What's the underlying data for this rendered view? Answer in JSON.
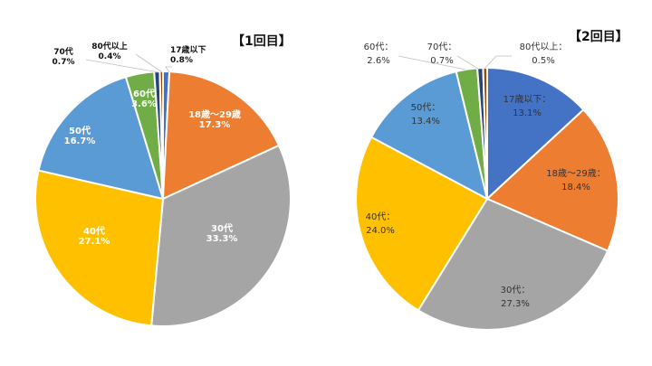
{
  "chart_data": [
    {
      "type": "pie",
      "title": "【1回目】",
      "categories": [
        "17歳以下",
        "18歳～29歳",
        "30代",
        "40代",
        "50代",
        "60代",
        "70代",
        "80代以上"
      ],
      "values": [
        0.8,
        17.3,
        33.3,
        27.1,
        16.7,
        3.6,
        0.7,
        0.4
      ],
      "labels": [
        "0.8%",
        "17.3%",
        "33.3%",
        "27.1%",
        "16.7%",
        "3.6%",
        "0.7%",
        "0.4%"
      ],
      "colors": [
        "#4472c4",
        "#ed7d31",
        "#a5a5a5",
        "#ffc000",
        "#5b9bd5",
        "#70ad47",
        "#264478",
        "#9e480e"
      ]
    },
    {
      "type": "pie",
      "title": "【2回目】",
      "categories": [
        "17歳以下：",
        "18歳～29歳：",
        "30代：",
        "40代：",
        "50代：",
        "60代：",
        "70代：",
        "80代以上："
      ],
      "values": [
        13.1,
        18.4,
        27.3,
        24.0,
        13.4,
        2.6,
        0.7,
        0.5
      ],
      "labels": [
        "13.1%",
        "18.4%",
        "27.3%",
        "24.0%",
        "13.4%",
        "2.6%",
        "0.7%",
        "0.5%"
      ],
      "colors": [
        "#4472c4",
        "#ed7d31",
        "#a5a5a5",
        "#ffc000",
        "#5b9bd5",
        "#70ad47",
        "#264478",
        "#9e480e"
      ]
    }
  ]
}
